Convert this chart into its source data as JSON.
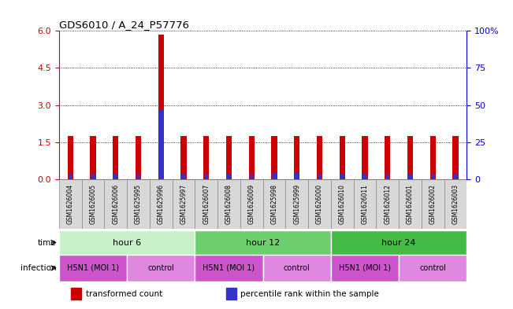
{
  "title": "GDS6010 / A_24_P57776",
  "samples": [
    "GSM1626004",
    "GSM1626005",
    "GSM1626006",
    "GSM1625995",
    "GSM1625996",
    "GSM1625997",
    "GSM1626007",
    "GSM1626008",
    "GSM1626009",
    "GSM1625998",
    "GSM1625999",
    "GSM1626000",
    "GSM1626010",
    "GSM1626011",
    "GSM1626012",
    "GSM1626001",
    "GSM1626002",
    "GSM1626003"
  ],
  "red_values": [
    1.75,
    1.75,
    1.75,
    1.75,
    5.85,
    1.75,
    1.75,
    1.75,
    1.75,
    1.75,
    1.75,
    1.75,
    1.75,
    1.75,
    1.75,
    1.75,
    1.75,
    1.75
  ],
  "blue_values_right": [
    3,
    3,
    3,
    3,
    47,
    3,
    3,
    3,
    3,
    4,
    4,
    3,
    3,
    3,
    3,
    3,
    3,
    3
  ],
  "ylim_left": [
    0,
    6
  ],
  "ylim_right": [
    0,
    100
  ],
  "yticks_left": [
    0,
    1.5,
    3.0,
    4.5,
    6.0
  ],
  "yticks_right": [
    0,
    25,
    50,
    75,
    100
  ],
  "ytick_right_labels": [
    "0",
    "25",
    "50",
    "75",
    "100%"
  ],
  "hour6": {
    "label": "hour 6",
    "start": 0,
    "end": 6,
    "color": "#c8f0c8"
  },
  "hour12": {
    "label": "hour 12",
    "start": 6,
    "end": 12,
    "color": "#6dce6d"
  },
  "hour24": {
    "label": "hour 24",
    "start": 12,
    "end": 18,
    "color": "#44bb44"
  },
  "inf_groups": [
    {
      "label": "H5N1 (MOI 1)",
      "start": 0,
      "end": 3,
      "color": "#cc55cc"
    },
    {
      "label": "control",
      "start": 3,
      "end": 6,
      "color": "#e088e0"
    },
    {
      "label": "H5N1 (MOI 1)",
      "start": 6,
      "end": 9,
      "color": "#cc55cc"
    },
    {
      "label": "control",
      "start": 9,
      "end": 12,
      "color": "#e088e0"
    },
    {
      "label": "H5N1 (MOI 1)",
      "start": 12,
      "end": 15,
      "color": "#cc55cc"
    },
    {
      "label": "control",
      "start": 15,
      "end": 18,
      "color": "#e088e0"
    }
  ],
  "red_color": "#cc0000",
  "blue_color": "#3333cc",
  "bar_width": 0.25,
  "blue_bar_width": 0.18,
  "sample_box_color": "#d8d8d8",
  "sample_box_edge": "#888888",
  "left_label_color": "#cc0000",
  "right_label_color": "#0000cc",
  "grid_linestyle": "dotted",
  "legend": [
    {
      "label": "transformed count",
      "color": "#cc0000"
    },
    {
      "label": "percentile rank within the sample",
      "color": "#3333cc"
    }
  ]
}
